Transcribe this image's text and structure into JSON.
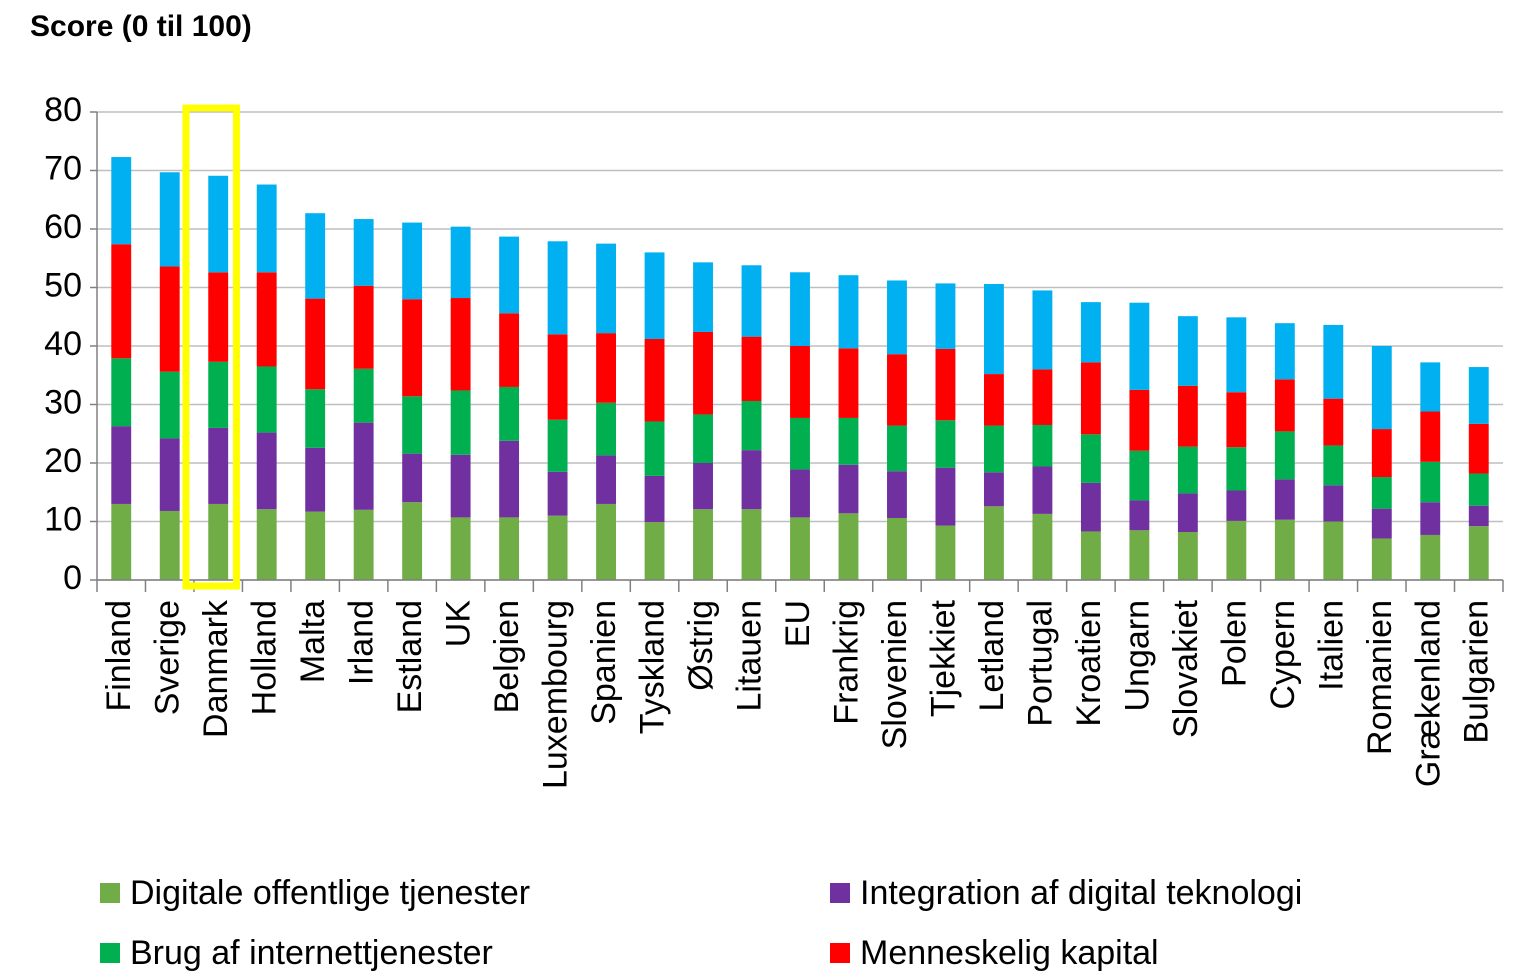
{
  "chart_data": {
    "type": "stacked_bar",
    "title": "Score (0 til 100)",
    "categories": [
      "Finland",
      "Sverige",
      "Danmark",
      "Holland",
      "Malta",
      "Irland",
      "Estland",
      "UK",
      "Belgien",
      "Luxembourg",
      "Spanien",
      "Tyskland",
      "Østrig",
      "Litauen",
      "EU",
      "Frankrig",
      "Slovenien",
      "Tjekkiet",
      "Letland",
      "Portugal",
      "Kroatien",
      "Ungarn",
      "Slovakiet",
      "Polen",
      "Cypern",
      "Italien",
      "Romanien",
      "Grækenland",
      "Bulgarien"
    ],
    "series": [
      {
        "name": "Digitale offentlige tjenester",
        "color": "#70ad47",
        "values": [
          13.0,
          11.8,
          13.0,
          12.1,
          11.7,
          12.0,
          13.3,
          10.7,
          10.7,
          11.0,
          13.0,
          9.9,
          12.1,
          12.1,
          10.7,
          11.4,
          10.6,
          9.3,
          12.6,
          11.3,
          8.3,
          8.5,
          8.2,
          10.1,
          10.3,
          10.0,
          7.1,
          7.7,
          9.2
        ]
      },
      {
        "name": "Integration af digital teknologi",
        "color": "#7030a0",
        "values": [
          13.3,
          12.4,
          13.0,
          13.1,
          10.9,
          14.9,
          8.3,
          10.7,
          13.1,
          7.5,
          8.3,
          7.9,
          7.9,
          10.1,
          8.2,
          8.3,
          8.0,
          9.9,
          5.8,
          8.1,
          8.3,
          5.1,
          6.6,
          5.2,
          6.9,
          6.2,
          5.1,
          5.6,
          3.5
        ]
      },
      {
        "name": "Brug af internettjenester",
        "color": "#00b050",
        "values": [
          11.6,
          11.4,
          11.3,
          11.3,
          10.0,
          9.2,
          9.8,
          11.0,
          9.2,
          8.9,
          9.0,
          9.3,
          8.3,
          8.4,
          8.8,
          8.0,
          7.8,
          8.1,
          8.0,
          7.1,
          8.3,
          8.5,
          8.0,
          7.4,
          8.2,
          6.8,
          5.4,
          6.9,
          5.5
        ]
      },
      {
        "name": "Menneskelig kapital",
        "color": "#ff0000",
        "values": [
          19.5,
          18.0,
          15.3,
          16.1,
          15.5,
          14.2,
          16.6,
          15.8,
          12.6,
          14.6,
          11.9,
          14.1,
          14.1,
          11.0,
          12.3,
          11.9,
          12.2,
          12.2,
          8.8,
          9.5,
          12.3,
          10.4,
          10.4,
          9.4,
          8.9,
          8.0,
          8.2,
          8.6,
          8.5
        ]
      },
      {
        "color": "#00b0f0",
        "values": [
          14.9,
          16.1,
          16.5,
          15.0,
          14.6,
          11.4,
          13.1,
          12.2,
          13.1,
          15.9,
          15.3,
          14.8,
          11.9,
          12.2,
          12.6,
          12.5,
          12.6,
          11.2,
          15.4,
          13.5,
          10.3,
          14.9,
          11.9,
          12.8,
          9.6,
          12.6,
          14.2,
          8.4,
          9.7
        ]
      }
    ],
    "ylim": [
      0,
      80
    ],
    "yticks": [
      0,
      10,
      20,
      30,
      40,
      50,
      60,
      70,
      80
    ],
    "grid": true
  }
}
